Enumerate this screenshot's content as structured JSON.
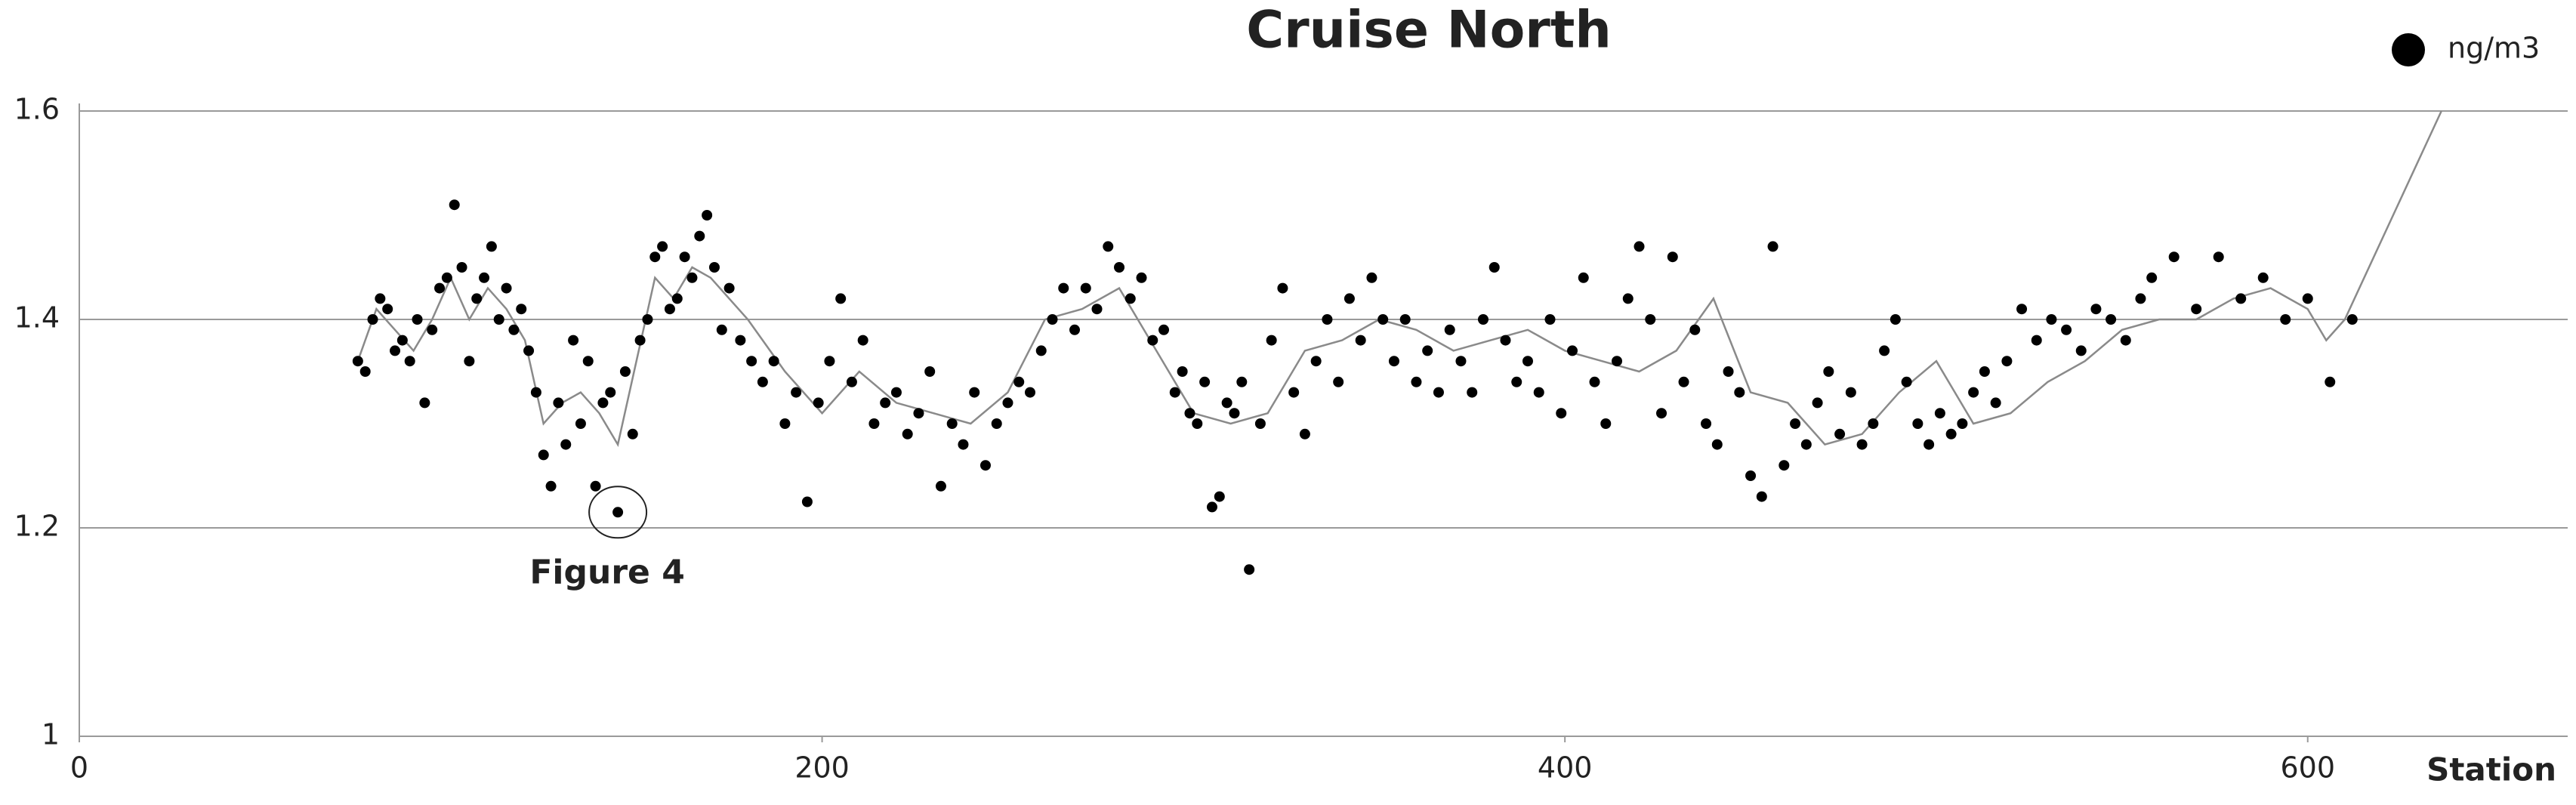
{
  "chart_data": {
    "type": "scatter",
    "title": "Cruise North",
    "x_label": "Station",
    "xlim": [
      0,
      670
    ],
    "ylim": [
      1,
      1.6
    ],
    "xticks": [
      0,
      200,
      400,
      600
    ],
    "yticks": [
      1,
      1.2,
      1.4,
      1.6
    ],
    "grid": true,
    "legend": "top-right",
    "series": [
      {
        "name": "ng/m3",
        "color": "#000000",
        "mode": "markers",
        "x": [
          75,
          77,
          79,
          81,
          83,
          85,
          87,
          89,
          91,
          93,
          95,
          97,
          99,
          101,
          103,
          105,
          107,
          109,
          111,
          113,
          115,
          117,
          119,
          121,
          123,
          125,
          127,
          129,
          131,
          133,
          135,
          137,
          139,
          141,
          143,
          145,
          147,
          149,
          151,
          153,
          155,
          157,
          159,
          161,
          163,
          165,
          167,
          169,
          171,
          173,
          175,
          178,
          181,
          184,
          187,
          190,
          193,
          196,
          199,
          202,
          205,
          208,
          211,
          214,
          217,
          220,
          223,
          226,
          229,
          232,
          235,
          238,
          241,
          244,
          247,
          250,
          253,
          256,
          259,
          262,
          265,
          268,
          271,
          274,
          277,
          280,
          283,
          286,
          289,
          292,
          295,
          297,
          299,
          301,
          303,
          305,
          307,
          309,
          311,
          313,
          315,
          318,
          321,
          324,
          327,
          330,
          333,
          336,
          339,
          342,
          345,
          348,
          351,
          354,
          357,
          360,
          363,
          366,
          369,
          372,
          375,
          378,
          381,
          384,
          387,
          390,
          393,
          396,
          399,
          402,
          405,
          408,
          411,
          414,
          417,
          420,
          423,
          426,
          429,
          432,
          435,
          438,
          441,
          444,
          447,
          450,
          453,
          456,
          459,
          462,
          465,
          468,
          471,
          474,
          477,
          480,
          483,
          486,
          489,
          492,
          495,
          498,
          501,
          504,
          507,
          510,
          513,
          516,
          519,
          523,
          527,
          531,
          535,
          539,
          543,
          547,
          551,
          555,
          558,
          564,
          570,
          576,
          582,
          588,
          594,
          600,
          606,
          612
        ],
        "values": [
          1.36,
          1.35,
          1.4,
          1.42,
          1.41,
          1.37,
          1.38,
          1.36,
          1.4,
          1.32,
          1.39,
          1.43,
          1.44,
          1.51,
          1.45,
          1.36,
          1.42,
          1.44,
          1.47,
          1.4,
          1.43,
          1.39,
          1.41,
          1.37,
          1.33,
          1.27,
          1.24,
          1.32,
          1.28,
          1.38,
          1.3,
          1.36,
          1.24,
          1.32,
          1.33,
          1.215,
          1.35,
          1.29,
          1.38,
          1.4,
          1.46,
          1.47,
          1.41,
          1.42,
          1.46,
          1.44,
          1.48,
          1.5,
          1.45,
          1.39,
          1.43,
          1.38,
          1.36,
          1.34,
          1.36,
          1.3,
          1.33,
          1.225,
          1.32,
          1.36,
          1.42,
          1.34,
          1.38,
          1.3,
          1.32,
          1.33,
          1.29,
          1.31,
          1.35,
          1.24,
          1.3,
          1.28,
          1.33,
          1.26,
          1.3,
          1.32,
          1.34,
          1.33,
          1.37,
          1.4,
          1.43,
          1.39,
          1.43,
          1.41,
          1.47,
          1.45,
          1.42,
          1.44,
          1.38,
          1.39,
          1.33,
          1.35,
          1.31,
          1.3,
          1.34,
          1.22,
          1.23,
          1.32,
          1.31,
          1.34,
          1.16,
          1.3,
          1.38,
          1.43,
          1.33,
          1.29,
          1.36,
          1.4,
          1.34,
          1.42,
          1.38,
          1.44,
          1.4,
          1.36,
          1.4,
          1.34,
          1.37,
          1.33,
          1.39,
          1.36,
          1.33,
          1.4,
          1.45,
          1.38,
          1.34,
          1.36,
          1.33,
          1.4,
          1.31,
          1.37,
          1.44,
          1.34,
          1.3,
          1.36,
          1.42,
          1.47,
          1.4,
          1.31,
          1.46,
          1.34,
          1.39,
          1.3,
          1.28,
          1.35,
          1.33,
          1.25,
          1.23,
          1.47,
          1.26,
          1.3,
          1.28,
          1.32,
          1.35,
          1.29,
          1.33,
          1.28,
          1.3,
          1.37,
          1.4,
          1.34,
          1.3,
          1.28,
          1.31,
          1.29,
          1.3,
          1.33,
          1.35,
          1.32,
          1.36,
          1.41,
          1.38,
          1.4,
          1.39,
          1.37,
          1.41,
          1.4,
          1.38,
          1.42,
          1.44,
          1.46,
          1.41,
          1.46,
          1.42,
          1.44,
          1.4,
          1.42,
          1.34,
          1.4
        ]
      },
      {
        "color": "#8a8a8a",
        "mode": "line",
        "x": [
          75,
          80,
          85,
          90,
          95,
          100,
          105,
          110,
          115,
          120,
          125,
          130,
          135,
          140,
          145,
          150,
          155,
          160,
          165,
          170,
          175,
          180,
          190,
          200,
          210,
          220,
          230,
          240,
          250,
          260,
          270,
          280,
          290,
          300,
          310,
          320,
          330,
          340,
          350,
          360,
          370,
          380,
          390,
          400,
          410,
          420,
          430,
          440,
          450,
          460,
          470,
          480,
          490,
          500,
          510,
          520,
          530,
          540,
          550,
          560,
          570,
          580,
          590,
          600,
          605,
          610,
          636
        ],
        "values": [
          1.36,
          1.41,
          1.39,
          1.37,
          1.4,
          1.44,
          1.4,
          1.43,
          1.41,
          1.38,
          1.3,
          1.32,
          1.33,
          1.31,
          1.28,
          1.36,
          1.44,
          1.42,
          1.45,
          1.44,
          1.42,
          1.4,
          1.35,
          1.31,
          1.35,
          1.32,
          1.31,
          1.3,
          1.33,
          1.4,
          1.41,
          1.43,
          1.37,
          1.31,
          1.3,
          1.31,
          1.37,
          1.38,
          1.4,
          1.39,
          1.37,
          1.38,
          1.39,
          1.37,
          1.36,
          1.35,
          1.37,
          1.42,
          1.33,
          1.32,
          1.28,
          1.29,
          1.33,
          1.36,
          1.3,
          1.31,
          1.34,
          1.36,
          1.39,
          1.4,
          1.4,
          1.42,
          1.43,
          1.41,
          1.38,
          1.4,
          1.6
        ]
      }
    ],
    "annotations": [
      {
        "text": "Figure 4",
        "x": 145,
        "y": 1.215
      }
    ]
  }
}
